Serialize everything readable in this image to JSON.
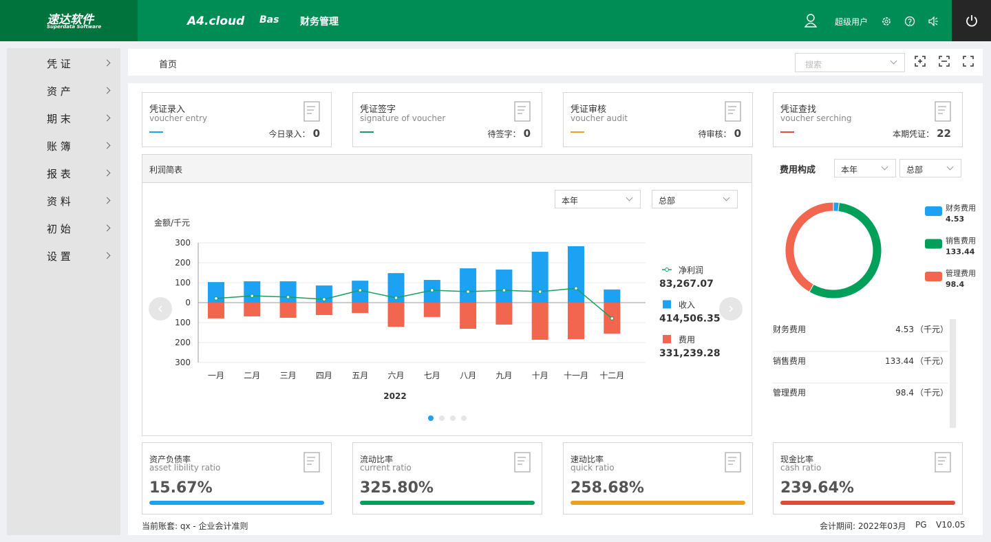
{
  "header": {
    "logo": "速达软件",
    "logo_sub": "Superdata Software",
    "nav": [
      "A4.cloud",
      "Bas",
      "财务管理"
    ],
    "user": "超级用户"
  },
  "sidebar": [
    "凭 证",
    "资 产",
    "期 末",
    "账 簿",
    "报 表",
    "资 料",
    "初 始",
    "设 置"
  ],
  "breadcrumb": "首页",
  "search_placeholder": "搜索",
  "voucher_cards": [
    {
      "title": "凭证录入",
      "subtitle": "voucher entry",
      "label": "今日录入：",
      "count": 0,
      "color": "#1da1f2"
    },
    {
      "title": "凭证签字",
      "subtitle": "signature of voucher",
      "label": "待签字：",
      "count": 0,
      "color": "#149a6a"
    },
    {
      "title": "凭证审核",
      "subtitle": "voucher audit",
      "label": "待审核：",
      "count": 0,
      "color": "#f0a020"
    },
    {
      "title": "凭证查找",
      "subtitle": "voucher serching",
      "label": "本期凭证：",
      "count": 22,
      "color": "#e04a3c"
    }
  ],
  "chart_data": [
    {
      "type": "bar",
      "title": "利润简表",
      "y_label": "金额/千元",
      "x_label": "2022",
      "filters": [
        "本年",
        "总部"
      ],
      "categories": [
        "一月",
        "二月",
        "三月",
        "四月",
        "五月",
        "六月",
        "七月",
        "八月",
        "九月",
        "十月",
        "十一月",
        "十二月"
      ],
      "ylim": [
        -300,
        300
      ],
      "yticks": [
        300,
        200,
        100,
        0,
        {
          "value": -100,
          "label": "100"
        },
        {
          "value": -200,
          "label": "200"
        },
        {
          "value": -300,
          "label": "300"
        }
      ],
      "grid": true,
      "series": [
        {
          "name": "净利润",
          "type": "line",
          "color": "#16a05d",
          "total": "83,267.07",
          "values": [
            21,
            34,
            28,
            17,
            62,
            24,
            62,
            55,
            62,
            55,
            72,
            -79
          ]
        },
        {
          "name": "收入",
          "type": "bar",
          "color": "#1da1f2",
          "total": "414,506.35",
          "values": [
            103,
            107,
            107,
            86,
            110,
            148,
            114,
            172,
            166,
            255,
            283,
            66
          ]
        },
        {
          "name": "费用",
          "type": "bar",
          "color": "#f2654f",
          "total": "331,239.28",
          "values": [
            -79,
            -69,
            -76,
            -62,
            -52,
            -121,
            -72,
            -131,
            -110,
            -186,
            -183,
            -155
          ]
        }
      ]
    },
    {
      "type": "donut",
      "title": "费用构成",
      "filters": [
        "本年",
        "总部"
      ],
      "categories": [
        "财务费用",
        "销售费用",
        "管理费用"
      ],
      "values": [
        4.53,
        133.44,
        98.4
      ],
      "colors": [
        "#1da1f2",
        "#00a05a",
        "#f2654f"
      ]
    }
  ],
  "expense_table": {
    "unit": "（千元）"
  },
  "ratio_cards": [
    {
      "title": "资产负债率",
      "subtitle": "asset libility ratio",
      "value": "15.67%",
      "color": "#1da1f2"
    },
    {
      "title": "流动比率",
      "subtitle": "current ratio",
      "value": "325.80%",
      "color": "#00a05a"
    },
    {
      "title": "速动比率",
      "subtitle": "quick ratio",
      "value": "258.68%",
      "color": "#f0a020"
    },
    {
      "title": "现金比率",
      "subtitle": "cash ratio",
      "value": "239.64%",
      "color": "#e04a3c"
    }
  ],
  "footer": {
    "account": "当前账套: qx - 企业会计准则",
    "period": "会计期间: 2022年03月",
    "edition": "PG",
    "version": "V10.05"
  }
}
